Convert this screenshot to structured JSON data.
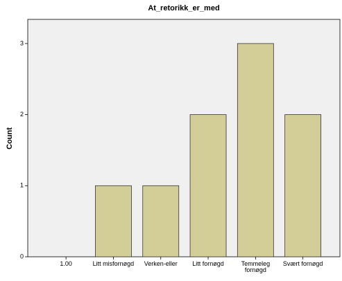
{
  "chart_data": {
    "type": "bar",
    "title": "At_retorikk_er_med",
    "y_label": "Count",
    "categories": [
      "1.00",
      "Litt misfornøgd",
      "Verken-eller",
      "Litt fornøgd",
      "Temmeleg fornøgd",
      "Svært fornøgd"
    ],
    "values": [
      0,
      1,
      1,
      2,
      3,
      2
    ],
    "color": "#d3ce97",
    "ylim": [
      0,
      3.34
    ],
    "yticks": [
      0,
      1,
      2,
      3
    ],
    "grid": false
  }
}
